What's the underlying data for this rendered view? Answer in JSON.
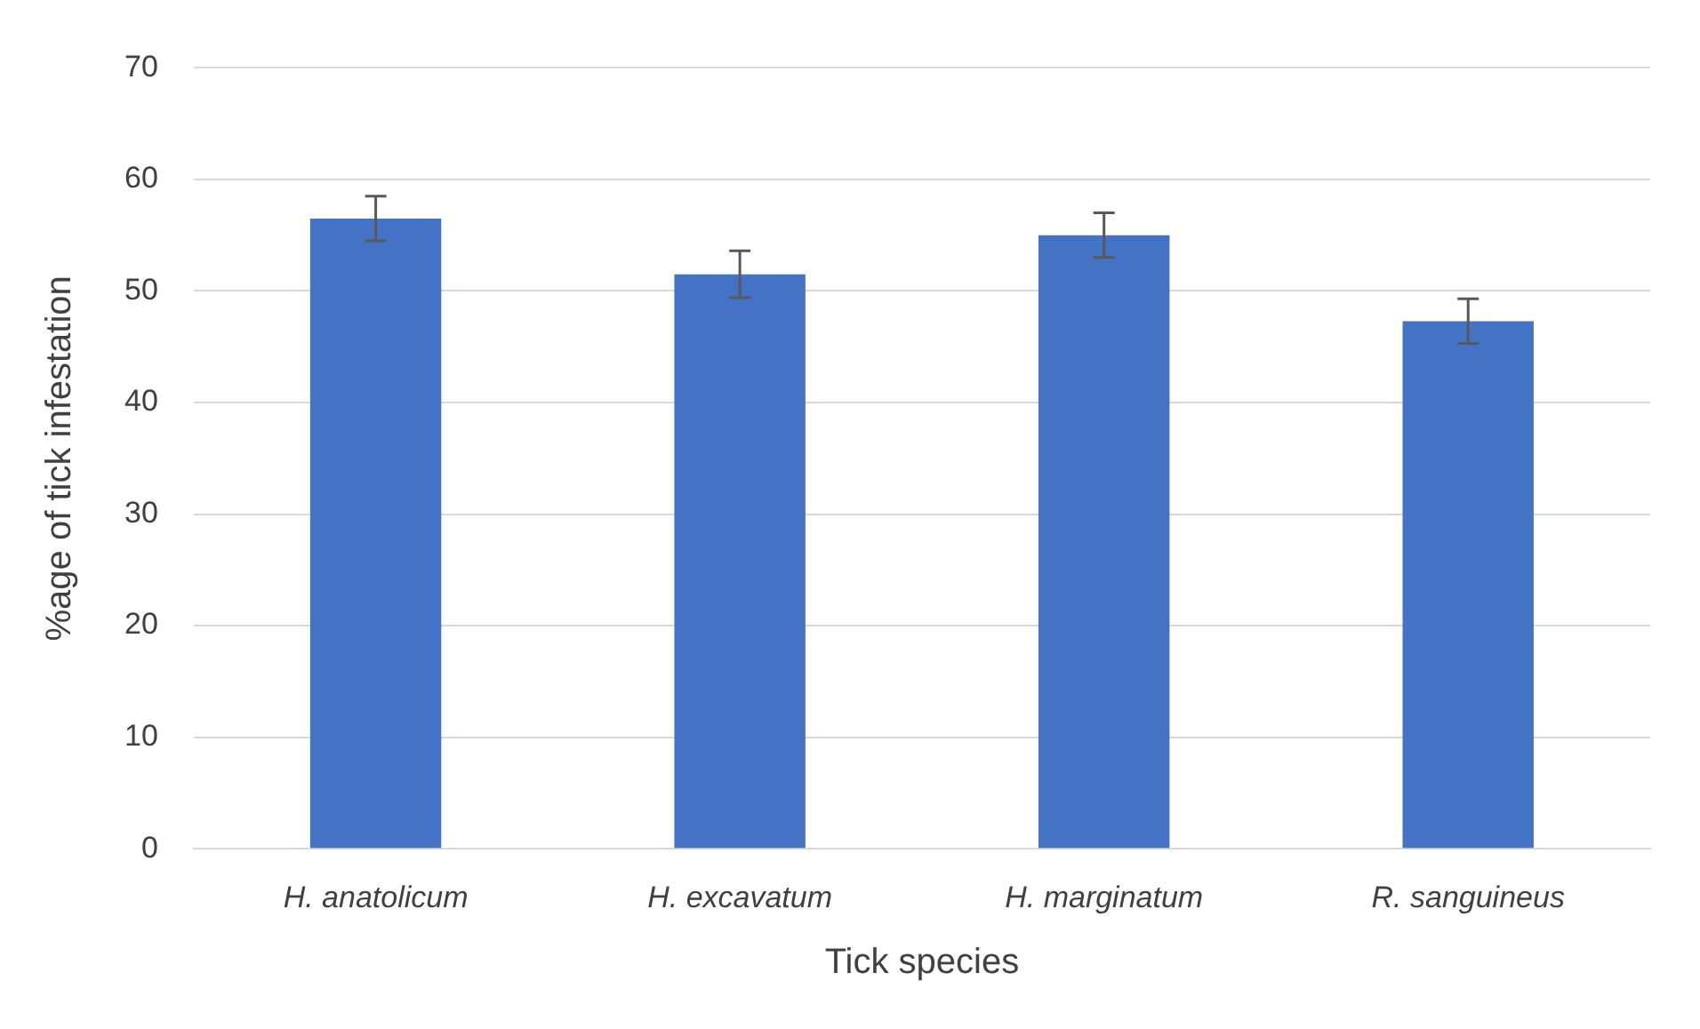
{
  "chart_data": {
    "type": "bar",
    "xlabel": "Tick species",
    "ylabel": "%age of tick infestation",
    "categories": [
      "H. anatolicum",
      "H. excavatum",
      "H. marginatum",
      "R. sanguineus"
    ],
    "values": [
      56.5,
      51.5,
      55.0,
      47.3
    ],
    "errors": [
      2.0,
      2.1,
      2.0,
      2.0
    ],
    "color": "#4472c4",
    "ylim": [
      0,
      70
    ],
    "yticks": [
      0,
      10,
      20,
      30,
      40,
      50,
      60,
      70
    ],
    "grid": "y"
  }
}
